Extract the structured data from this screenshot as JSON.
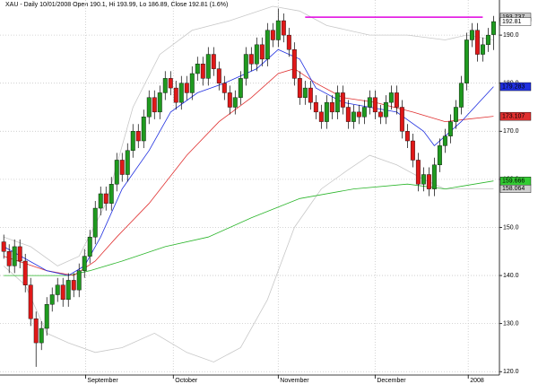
{
  "chart_data": {
    "type": "candlestick",
    "title": "XAU - Daily 10/01/2008 Open 190.1, Hi 193.99, Lo 186.89, Close 192.81 (1.6%)",
    "up_color": "#1f9a1f",
    "down_color": "#e01818",
    "xlim": [
      -0.7,
      92.1
    ],
    "ylim": [
      119.3,
      197.3
    ],
    "yticks": [
      {
        "value": 120,
        "label": "120.0"
      },
      {
        "value": 130,
        "label": "130.0"
      },
      {
        "value": 140,
        "label": "140.0"
      },
      {
        "value": 150,
        "label": "150.0"
      },
      {
        "value": 160,
        "label": "160.0"
      },
      {
        "value": 170,
        "label": "170.0"
      },
      {
        "value": 180,
        "label": "180.0"
      },
      {
        "value": 190,
        "label": "190.0"
      }
    ],
    "xticks": [
      {
        "value": 15.2,
        "label": "September"
      },
      {
        "value": 31.5,
        "label": "October"
      },
      {
        "value": 51,
        "label": "November"
      },
      {
        "value": 69,
        "label": "December"
      },
      {
        "value": 86.3,
        "label": "2008"
      }
    ],
    "grid": true,
    "candles": [
      [
        147,
        148.5,
        143.5,
        145
      ],
      [
        145,
        146.5,
        140.5,
        142
      ],
      [
        142,
        147.5,
        140.5,
        146
      ],
      [
        146,
        147.5,
        141.5,
        143
      ],
      [
        143,
        144.5,
        136.5,
        138
      ],
      [
        138,
        139.5,
        129.5,
        131
      ],
      [
        131,
        132.5,
        121,
        126
      ],
      [
        126,
        130.5,
        124.5,
        129
      ],
      [
        129,
        135.5,
        127.5,
        134
      ],
      [
        134,
        137.5,
        132.5,
        136
      ],
      [
        136,
        139.5,
        134.5,
        138
      ],
      [
        138,
        139.5,
        133.5,
        135
      ],
      [
        135,
        140.5,
        133.5,
        139
      ],
      [
        139,
        140.5,
        135.5,
        137
      ],
      [
        137,
        142.5,
        135.5,
        141
      ],
      [
        141,
        145.5,
        139.5,
        144
      ],
      [
        144,
        149.5,
        142.5,
        148
      ],
      [
        148,
        155.5,
        146.5,
        154
      ],
      [
        154,
        158.5,
        152.5,
        157
      ],
      [
        157,
        158.5,
        153.5,
        155
      ],
      [
        155,
        160.5,
        153.5,
        159
      ],
      [
        159,
        165.5,
        157.5,
        164
      ],
      [
        164,
        165.5,
        159.5,
        161
      ],
      [
        161,
        167.5,
        159.5,
        166
      ],
      [
        166,
        171.5,
        164.5,
        170
      ],
      [
        170,
        171.5,
        166.5,
        168
      ],
      [
        168,
        174.5,
        166.5,
        173
      ],
      [
        173,
        178.5,
        171.5,
        177
      ],
      [
        177,
        178.5,
        172.5,
        174
      ],
      [
        174,
        179.5,
        172.5,
        178
      ],
      [
        178,
        182.5,
        176.5,
        181
      ],
      [
        181,
        182.5,
        177.5,
        179
      ],
      [
        179,
        180.5,
        174.5,
        176
      ],
      [
        176,
        181.5,
        174.5,
        180
      ],
      [
        180,
        181.5,
        176.5,
        178
      ],
      [
        178,
        183.5,
        176.5,
        182
      ],
      [
        182,
        185.5,
        180.5,
        184
      ],
      [
        184,
        185.5,
        179.5,
        181
      ],
      [
        181,
        187.5,
        179.5,
        186
      ],
      [
        186,
        187.5,
        181.5,
        183
      ],
      [
        183,
        184.5,
        178.5,
        180
      ],
      [
        180,
        181.5,
        176.5,
        178
      ],
      [
        178,
        179.5,
        173.5,
        175
      ],
      [
        175,
        178.5,
        173.5,
        177
      ],
      [
        177,
        182.5,
        175.5,
        181
      ],
      [
        181,
        187.5,
        179.5,
        186
      ],
      [
        186,
        187.5,
        182.5,
        184
      ],
      [
        184,
        189.5,
        182.5,
        188
      ],
      [
        188,
        189.5,
        183.5,
        185
      ],
      [
        185,
        192.5,
        183.5,
        191
      ],
      [
        191,
        192.5,
        187.5,
        189
      ],
      [
        189,
        195.5,
        187.5,
        193
      ],
      [
        193,
        194.5,
        188.5,
        190
      ],
      [
        190,
        191.5,
        185.5,
        187
      ],
      [
        187,
        188.5,
        179.5,
        181
      ],
      [
        181,
        182.5,
        175.5,
        177
      ],
      [
        177,
        180.5,
        175.5,
        179
      ],
      [
        179,
        180.5,
        174.5,
        176
      ],
      [
        176,
        177.5,
        172.5,
        174
      ],
      [
        174,
        175.5,
        170.5,
        172
      ],
      [
        172,
        177.5,
        170.5,
        176
      ],
      [
        176,
        177.5,
        172.5,
        174
      ],
      [
        174,
        179.5,
        172.5,
        178
      ],
      [
        178,
        179.5,
        173.5,
        175
      ],
      [
        175,
        176.5,
        170.5,
        172
      ],
      [
        172,
        175.5,
        170.5,
        174
      ],
      [
        174,
        175.5,
        171.5,
        173
      ],
      [
        173,
        176.5,
        171.5,
        175
      ],
      [
        175,
        178.5,
        173.5,
        177
      ],
      [
        177,
        178.5,
        172.5,
        174
      ],
      [
        174,
        175.5,
        171.5,
        173
      ],
      [
        173,
        177.5,
        171.5,
        176
      ],
      [
        176,
        179.5,
        174.5,
        178
      ],
      [
        178,
        179.5,
        173.5,
        175
      ],
      [
        175,
        176.5,
        168.5,
        170
      ],
      [
        170,
        171.5,
        166.5,
        168
      ],
      [
        168,
        169.5,
        162.5,
        164
      ],
      [
        164,
        165.5,
        157.5,
        159
      ],
      [
        159,
        162.5,
        157.5,
        161
      ],
      [
        161,
        162.5,
        156.5,
        158
      ],
      [
        158,
        164.5,
        156.5,
        163
      ],
      [
        163,
        168.5,
        161.5,
        167
      ],
      [
        167,
        170.5,
        165.5,
        169
      ],
      [
        169,
        173.5,
        167.5,
        172
      ],
      [
        172,
        176.5,
        170.5,
        175
      ],
      [
        175,
        181.5,
        173.5,
        180
      ],
      [
        180,
        190.5,
        178.5,
        189
      ],
      [
        189,
        192.5,
        187.5,
        191
      ],
      [
        191,
        192.5,
        184.5,
        186
      ],
      [
        186,
        189.5,
        184.5,
        188
      ],
      [
        188,
        191.5,
        186.5,
        190
      ],
      [
        190.1,
        193.99,
        186.89,
        192.81
      ]
    ],
    "close_label_bg": "#ffffff",
    "overlays": [
      {
        "color": "#c8c8c8",
        "x": [
          0,
          5,
          10,
          14,
          19,
          24,
          29,
          35,
          42,
          50,
          55,
          60,
          68,
          75,
          82,
          86,
          91
        ],
        "values": [
          148,
          146,
          142,
          144,
          155,
          175,
          186,
          191,
          193,
          196,
          195,
          192,
          190,
          190,
          189,
          190,
          189
        ]
      },
      {
        "color": "#c8c8c8",
        "x": [
          0,
          4,
          8,
          12,
          17,
          22,
          28,
          34,
          39,
          44,
          49,
          54,
          59,
          64,
          68,
          73,
          78,
          82,
          91
        ],
        "values": [
          142,
          138,
          128,
          126,
          124,
          125,
          128,
          124,
          122,
          125,
          135,
          150,
          158,
          162,
          165,
          163,
          160,
          158,
          158.064
        ],
        "label_bg": "#d0d0d0"
      },
      {
        "color": "#2ab52a",
        "x": [
          0,
          12,
          16,
          22,
          30,
          38,
          46,
          55,
          65,
          75,
          82,
          91
        ],
        "values": [
          140,
          140,
          141,
          143,
          146,
          148,
          152,
          156,
          158,
          159,
          158,
          159.666
        ],
        "label_bg": "#33cc33"
      },
      {
        "color": "#e03030",
        "x": [
          0,
          8,
          13,
          17,
          21,
          27,
          34,
          40,
          46,
          51,
          54,
          58,
          63,
          69,
          76,
          82,
          91
        ],
        "values": [
          144,
          141,
          140,
          143,
          148,
          155,
          165,
          172,
          177,
          182,
          183,
          180,
          177,
          176,
          174,
          172,
          173.107
        ],
        "label_bg": "#e03030"
      },
      {
        "color": "#2030e0",
        "x": [
          0,
          8,
          12,
          15,
          18,
          22,
          27,
          31,
          36,
          41,
          47,
          51,
          55,
          58,
          63,
          68,
          73,
          78,
          80,
          85,
          91
        ],
        "values": [
          146,
          141,
          140,
          142,
          148,
          158,
          166,
          174,
          178,
          180,
          183,
          187,
          185,
          179,
          176,
          175,
          174,
          170,
          167,
          172,
          179.283
        ],
        "label_bg": "#2030e0"
      }
    ],
    "level": {
      "color": "#e000e0",
      "x": [
        56,
        89
      ],
      "value": 193.737,
      "label_bg": "#c8c8c8"
    }
  }
}
